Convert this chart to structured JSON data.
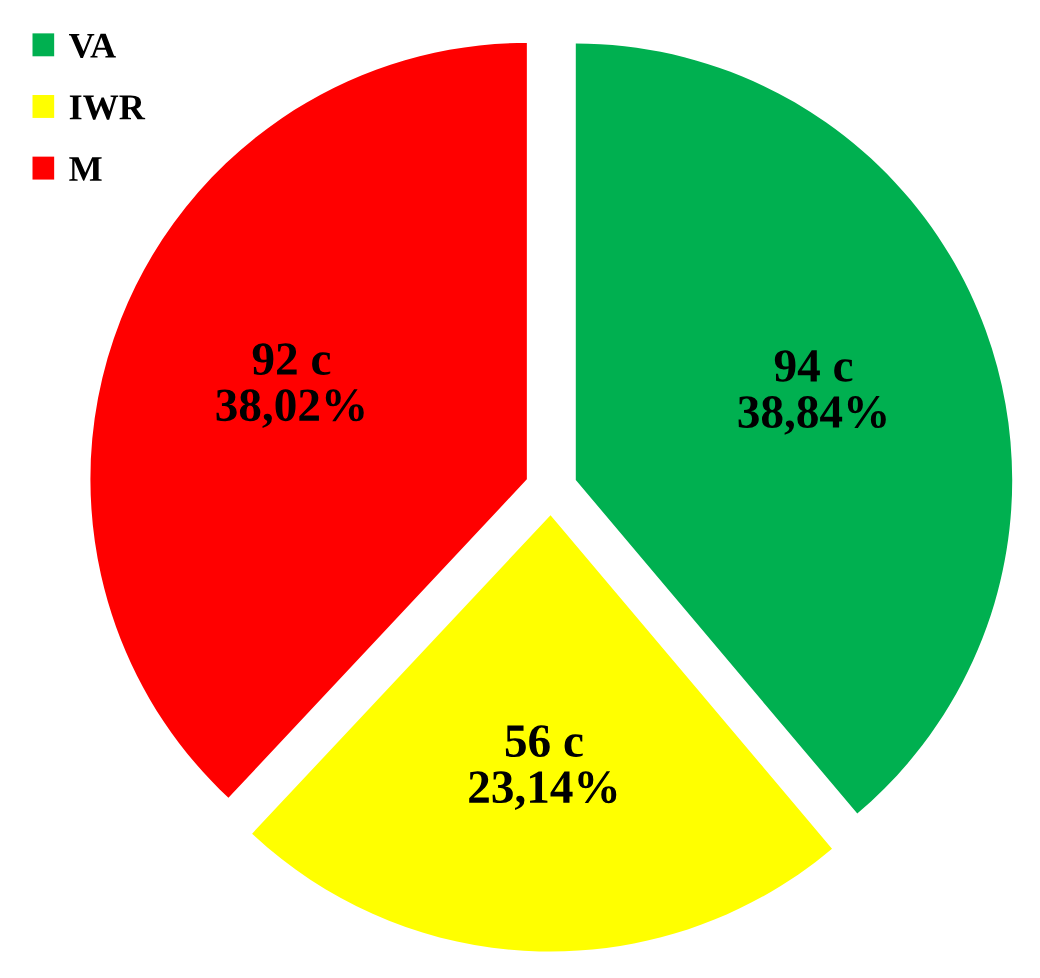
{
  "chart_data": {
    "type": "pie",
    "categories": [
      "VA",
      "IWR",
      "M"
    ],
    "values": [
      94,
      56,
      92
    ],
    "colors": [
      "#00b050",
      "#ffff00",
      "#ff0000"
    ],
    "value_labels": [
      "94 c\n38,84%",
      "56 c\n23,14%",
      "92 c\n38,02%"
    ],
    "legend": "top left"
  }
}
